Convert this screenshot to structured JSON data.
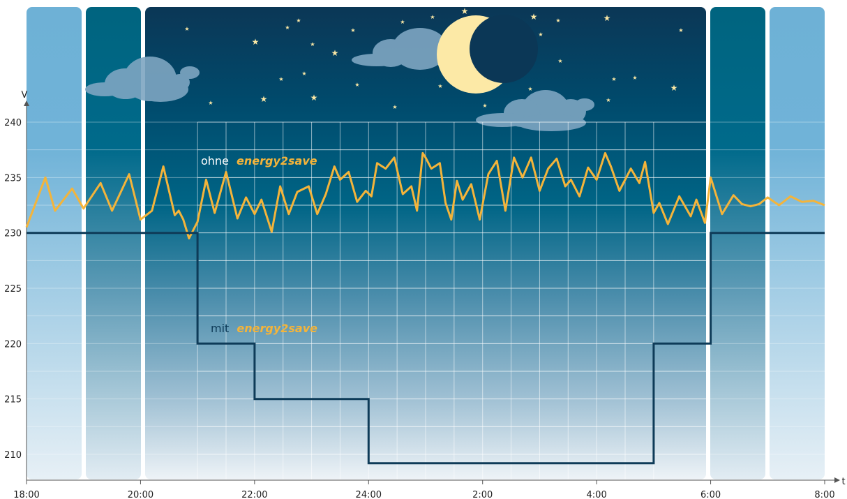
{
  "chart_data": {
    "type": "line",
    "xlabel": "t",
    "ylabel": "V",
    "x_range_hours": [
      18,
      32
    ],
    "ylim": [
      207.5,
      241
    ],
    "x_ticks": [
      {
        "label": "18:00",
        "value": 18
      },
      {
        "label": "20:00",
        "value": 20
      },
      {
        "label": "22:00",
        "value": 22
      },
      {
        "label": "24:00",
        "value": 24
      },
      {
        "label": "2:00",
        "value": 26
      },
      {
        "label": "4:00",
        "value": 28
      },
      {
        "label": "6:00",
        "value": 30
      },
      {
        "label": "8:00",
        "value": 32
      }
    ],
    "y_ticks": [
      240,
      235,
      230,
      225,
      220,
      215,
      210
    ],
    "grid": "on (night area)",
    "series": [
      {
        "name_prefix": "ohne",
        "name_brand": "energy2save",
        "color": "#f4b43a",
        "x": [
          18.0,
          18.33,
          18.5,
          18.8,
          19.0,
          19.3,
          19.5,
          19.8,
          20.0,
          20.2,
          20.4,
          20.6,
          20.67,
          20.75,
          20.85,
          21.0,
          21.15,
          21.3,
          21.5,
          21.7,
          21.85,
          22.0,
          22.12,
          22.3,
          22.45,
          22.6,
          22.75,
          22.95,
          23.1,
          23.25,
          23.4,
          23.5,
          23.65,
          23.8,
          23.95,
          24.05,
          24.15,
          24.3,
          24.45,
          24.6,
          24.75,
          24.85,
          24.95,
          25.0,
          25.1,
          25.25,
          25.35,
          25.45,
          25.55,
          25.65,
          25.8,
          25.95,
          26.1,
          26.25,
          26.4,
          26.55,
          26.7,
          26.85,
          27.0,
          27.15,
          27.3,
          27.45,
          27.55,
          27.7,
          27.85,
          28.0,
          28.15,
          28.25,
          28.4,
          28.5,
          28.6,
          28.75,
          28.85,
          29.0,
          29.1,
          29.25,
          29.45,
          29.65,
          29.75,
          29.9,
          30.0,
          30.2,
          30.4,
          30.55,
          30.7,
          30.85,
          31.0,
          31.2,
          31.4,
          31.6,
          31.8,
          32.0
        ],
        "values": [
          230.5,
          235.0,
          232.0,
          234.0,
          232.2,
          234.5,
          232.0,
          235.3,
          231.2,
          232.0,
          236.0,
          231.6,
          232.0,
          231.2,
          229.5,
          231.0,
          234.8,
          231.8,
          235.5,
          231.3,
          233.2,
          231.7,
          233.0,
          230.1,
          234.2,
          231.7,
          233.7,
          234.2,
          231.7,
          233.5,
          236.0,
          234.8,
          235.5,
          232.8,
          233.8,
          233.3,
          236.3,
          235.8,
          236.8,
          233.5,
          234.2,
          232.0,
          237.2,
          236.8,
          235.8,
          236.3,
          232.7,
          231.2,
          234.7,
          233.0,
          234.4,
          231.2,
          235.3,
          236.5,
          232.0,
          236.8,
          235.0,
          236.8,
          233.8,
          235.8,
          236.7,
          234.2,
          234.8,
          233.3,
          235.9,
          234.8,
          237.2,
          236.0,
          233.8,
          234.8,
          235.8,
          234.5,
          236.4,
          231.8,
          232.7,
          230.8,
          233.3,
          231.5,
          233.0,
          230.9,
          235.0,
          231.7,
          233.4,
          232.6,
          232.4,
          232.6,
          233.2,
          232.5,
          233.3,
          232.8,
          232.9,
          232.5
        ]
      },
      {
        "name_prefix": "mit",
        "name_brand": "energy2save",
        "color": "#0e3b58",
        "step": true,
        "x": [
          18,
          21,
          21,
          22,
          22,
          24,
          24,
          29,
          29,
          30,
          30,
          32
        ],
        "values": [
          230,
          230,
          220,
          220,
          215,
          215,
          209.2,
          209.2,
          220,
          220,
          230,
          230
        ]
      }
    ],
    "colors": {
      "day_panel": "#6fb2d6",
      "twilight_panel": "#006a8c",
      "night_panel": "#0d3d5e",
      "moon": "#fce9a6",
      "stars": "#fce9a6",
      "clouds": "#6f9ab8",
      "brand_text": "#f4b43a",
      "ohne_text": "#ffffff",
      "mit_text": "#0e3b58"
    }
  }
}
